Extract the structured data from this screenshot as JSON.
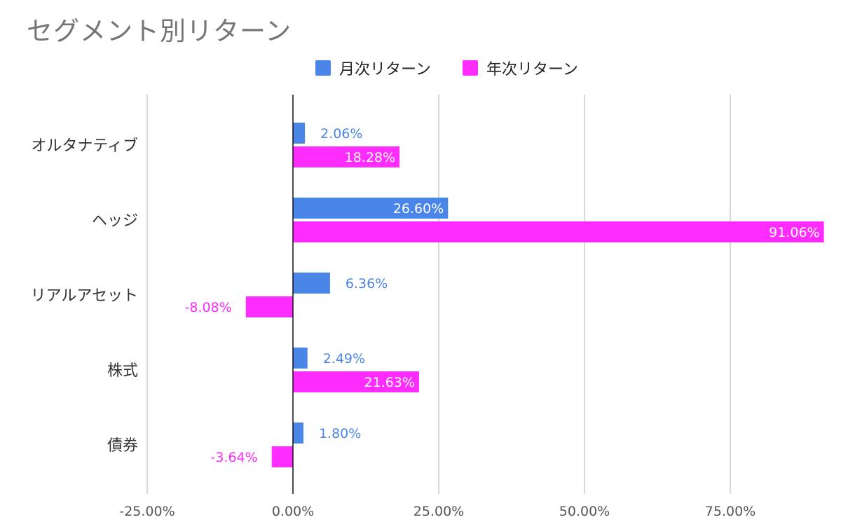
{
  "chart_data": {
    "type": "bar",
    "orientation": "horizontal",
    "title": "セグメント別リターン",
    "categories": [
      "オルタナティブ",
      "ヘッジ",
      "リアルアセット",
      "株式",
      "債券"
    ],
    "series": [
      {
        "name": "月次リターン",
        "color": "#4a86e8",
        "values": [
          2.06,
          26.6,
          6.36,
          2.49,
          1.8
        ],
        "labels": [
          "2.06%",
          "26.60%",
          "6.36%",
          "2.49%",
          "1.80%"
        ]
      },
      {
        "name": "年次リターン",
        "color": "#ff2cff",
        "values": [
          18.28,
          91.06,
          -8.08,
          21.63,
          -3.64
        ],
        "labels": [
          "18.28%",
          "91.06%",
          "-8.08%",
          "21.63%",
          "-3.64%"
        ]
      }
    ],
    "xlim": [
      -25,
      91.06
    ],
    "xticks": [
      -25,
      0,
      25,
      50,
      75
    ],
    "xtick_labels": [
      "-25.00%",
      "0.00%",
      "25.00%",
      "50.00%",
      "75.00%"
    ],
    "xlabel": "",
    "ylabel": "",
    "grid": true,
    "legend_position": "top-center"
  }
}
